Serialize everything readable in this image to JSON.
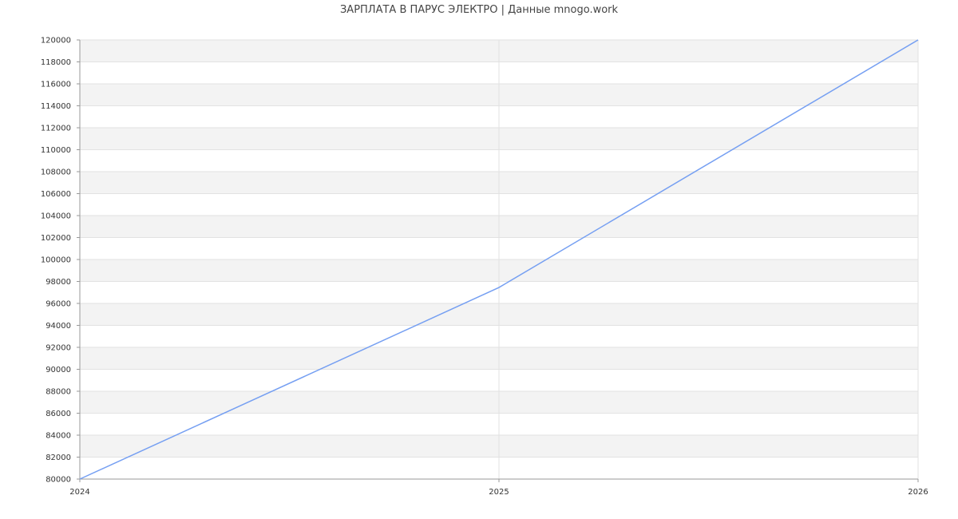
{
  "chart_data": {
    "type": "line",
    "title": "ЗАРПЛАТА В  ПАРУС ЭЛЕКТРО | Данные mnogo.work",
    "xlabel": "",
    "ylabel": "",
    "x": [
      "2024",
      "2025",
      "2026"
    ],
    "series": [
      {
        "values": [
          80000,
          97450,
          120000
        ],
        "color": "#759ff2"
      }
    ],
    "ylim": [
      80000,
      120000
    ],
    "ytick_step": 2000,
    "grid": true,
    "legend": "none"
  }
}
